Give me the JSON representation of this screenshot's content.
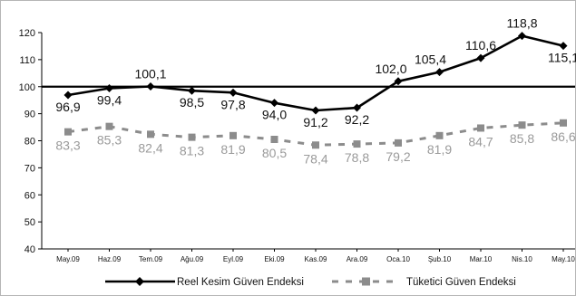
{
  "chart_data": {
    "type": "line",
    "categories": [
      "May.09",
      "Haz.09",
      "Tem.09",
      "Ağu.09",
      "Eyl.09",
      "Eki.09",
      "Kas.09",
      "Ara.09",
      "Oca.10",
      "Şub.10",
      "Mar.10",
      "Nis.10",
      "May.10"
    ],
    "series": [
      {
        "name": "Reel Kesim Güven Endeksi",
        "values": [
          96.9,
          99.4,
          100.1,
          98.5,
          97.8,
          94.0,
          91.2,
          92.2,
          102.0,
          105.4,
          110.6,
          118.8,
          115.1
        ],
        "labels": [
          "96,9",
          "99,4",
          "100,1",
          "98,5",
          "97,8",
          "94,0",
          "91,2",
          "92,2",
          "102,0",
          "105,4",
          "110,6",
          "118,8",
          "115,1"
        ],
        "color": "#000000",
        "marker": "diamond",
        "line_style": "solid"
      },
      {
        "name": "Tüketici Güven Endeksi",
        "values": [
          83.3,
          85.3,
          82.4,
          81.3,
          81.9,
          80.5,
          78.4,
          78.8,
          79.2,
          81.9,
          84.7,
          85.8,
          86.6
        ],
        "labels": [
          "83,3",
          "85,3",
          "82,4",
          "81,3",
          "81,9",
          "80,5",
          "78,4",
          "78,8",
          "79,2",
          "81,9",
          "84,7",
          "85,8",
          "86,6"
        ],
        "color": "#8c8c8c",
        "marker": "square",
        "line_style": "dashed"
      }
    ],
    "yticks": [
      40,
      50,
      60,
      70,
      80,
      90,
      100,
      110,
      120
    ],
    "ylim": [
      40,
      120
    ],
    "reference_line": 100,
    "grid": false,
    "legend_position": "bottom"
  }
}
